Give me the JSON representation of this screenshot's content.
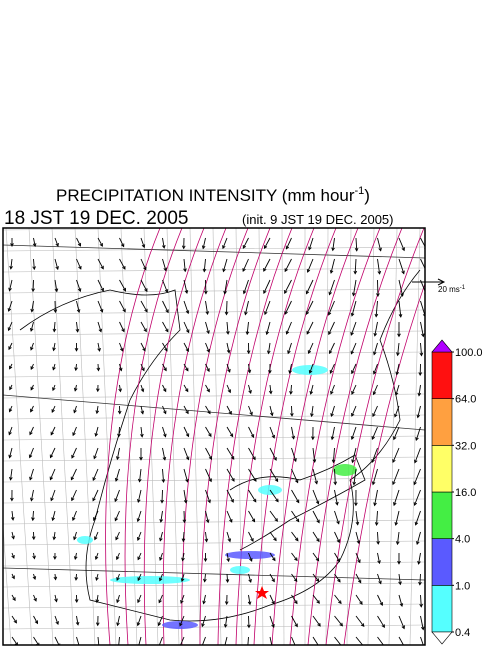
{
  "header": {
    "title_text": "PRECIPITATION INTENSITY (mm hour",
    "title_exp": "-1",
    "title_close": ")",
    "valid_time": "18 JST 19 DEC. 2005",
    "init_time": "(init. 9 JST 19 DEC. 2005)"
  },
  "wind_scale": {
    "text": "20 ms",
    "exp": "-1"
  },
  "colorbar": {
    "levels": [
      {
        "value": 0.4,
        "label": "0.4"
      },
      {
        "value": 1,
        "label": "1.0"
      },
      {
        "value": 4,
        "label": "4.0"
      },
      {
        "value": 16,
        "label": "16.0"
      },
      {
        "value": 32,
        "label": "32.0"
      },
      {
        "value": 64,
        "label": "64.0"
      },
      {
        "value": 100,
        "label": "100.0"
      }
    ],
    "colors": [
      "#55ffff",
      "#5a5aff",
      "#44ee44",
      "#ffff66",
      "#ffa040",
      "#ff1010"
    ],
    "over_color": "#b000ff",
    "under_color": "#ffffff"
  }
}
